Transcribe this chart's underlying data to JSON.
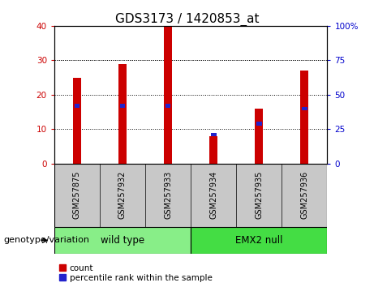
{
  "title": "GDS3173 / 1420853_at",
  "samples": [
    "GSM257875",
    "GSM257932",
    "GSM257933",
    "GSM257934",
    "GSM257935",
    "GSM257936"
  ],
  "counts": [
    25,
    29,
    40,
    8,
    16,
    27
  ],
  "percentile_ranks": [
    42,
    42,
    42,
    21,
    29,
    40
  ],
  "ylim_left": [
    0,
    40
  ],
  "ylim_right": [
    0,
    100
  ],
  "yticks_left": [
    0,
    10,
    20,
    30,
    40
  ],
  "yticks_right": [
    0,
    25,
    50,
    75,
    100
  ],
  "ytick_right_labels": [
    "0",
    "25",
    "50",
    "75",
    "100%"
  ],
  "bar_color_red": "#CC0000",
  "bar_color_blue": "#2222CC",
  "bar_width": 0.18,
  "blue_bar_width": 0.12,
  "blue_bar_height": 1.0,
  "groups": [
    {
      "label": "wild type",
      "indices": [
        0,
        1,
        2
      ],
      "color": "#88EE88"
    },
    {
      "label": "EMX2 null",
      "indices": [
        3,
        4,
        5
      ],
      "color": "#44DD44"
    }
  ],
  "group_label_prefix": "genotype/variation",
  "legend_count_label": "count",
  "legend_pct_label": "percentile rank within the sample",
  "tick_area_color": "#C8C8C8",
  "spine_color": "#000000",
  "background_color": "#FFFFFF",
  "plot_area_bg": "#FFFFFF",
  "title_fontsize": 11,
  "tick_label_fontsize": 7.5,
  "sample_label_fontsize": 7,
  "legend_fontsize": 7.5,
  "group_header_fontsize": 8.5,
  "group_label_fontsize": 8
}
